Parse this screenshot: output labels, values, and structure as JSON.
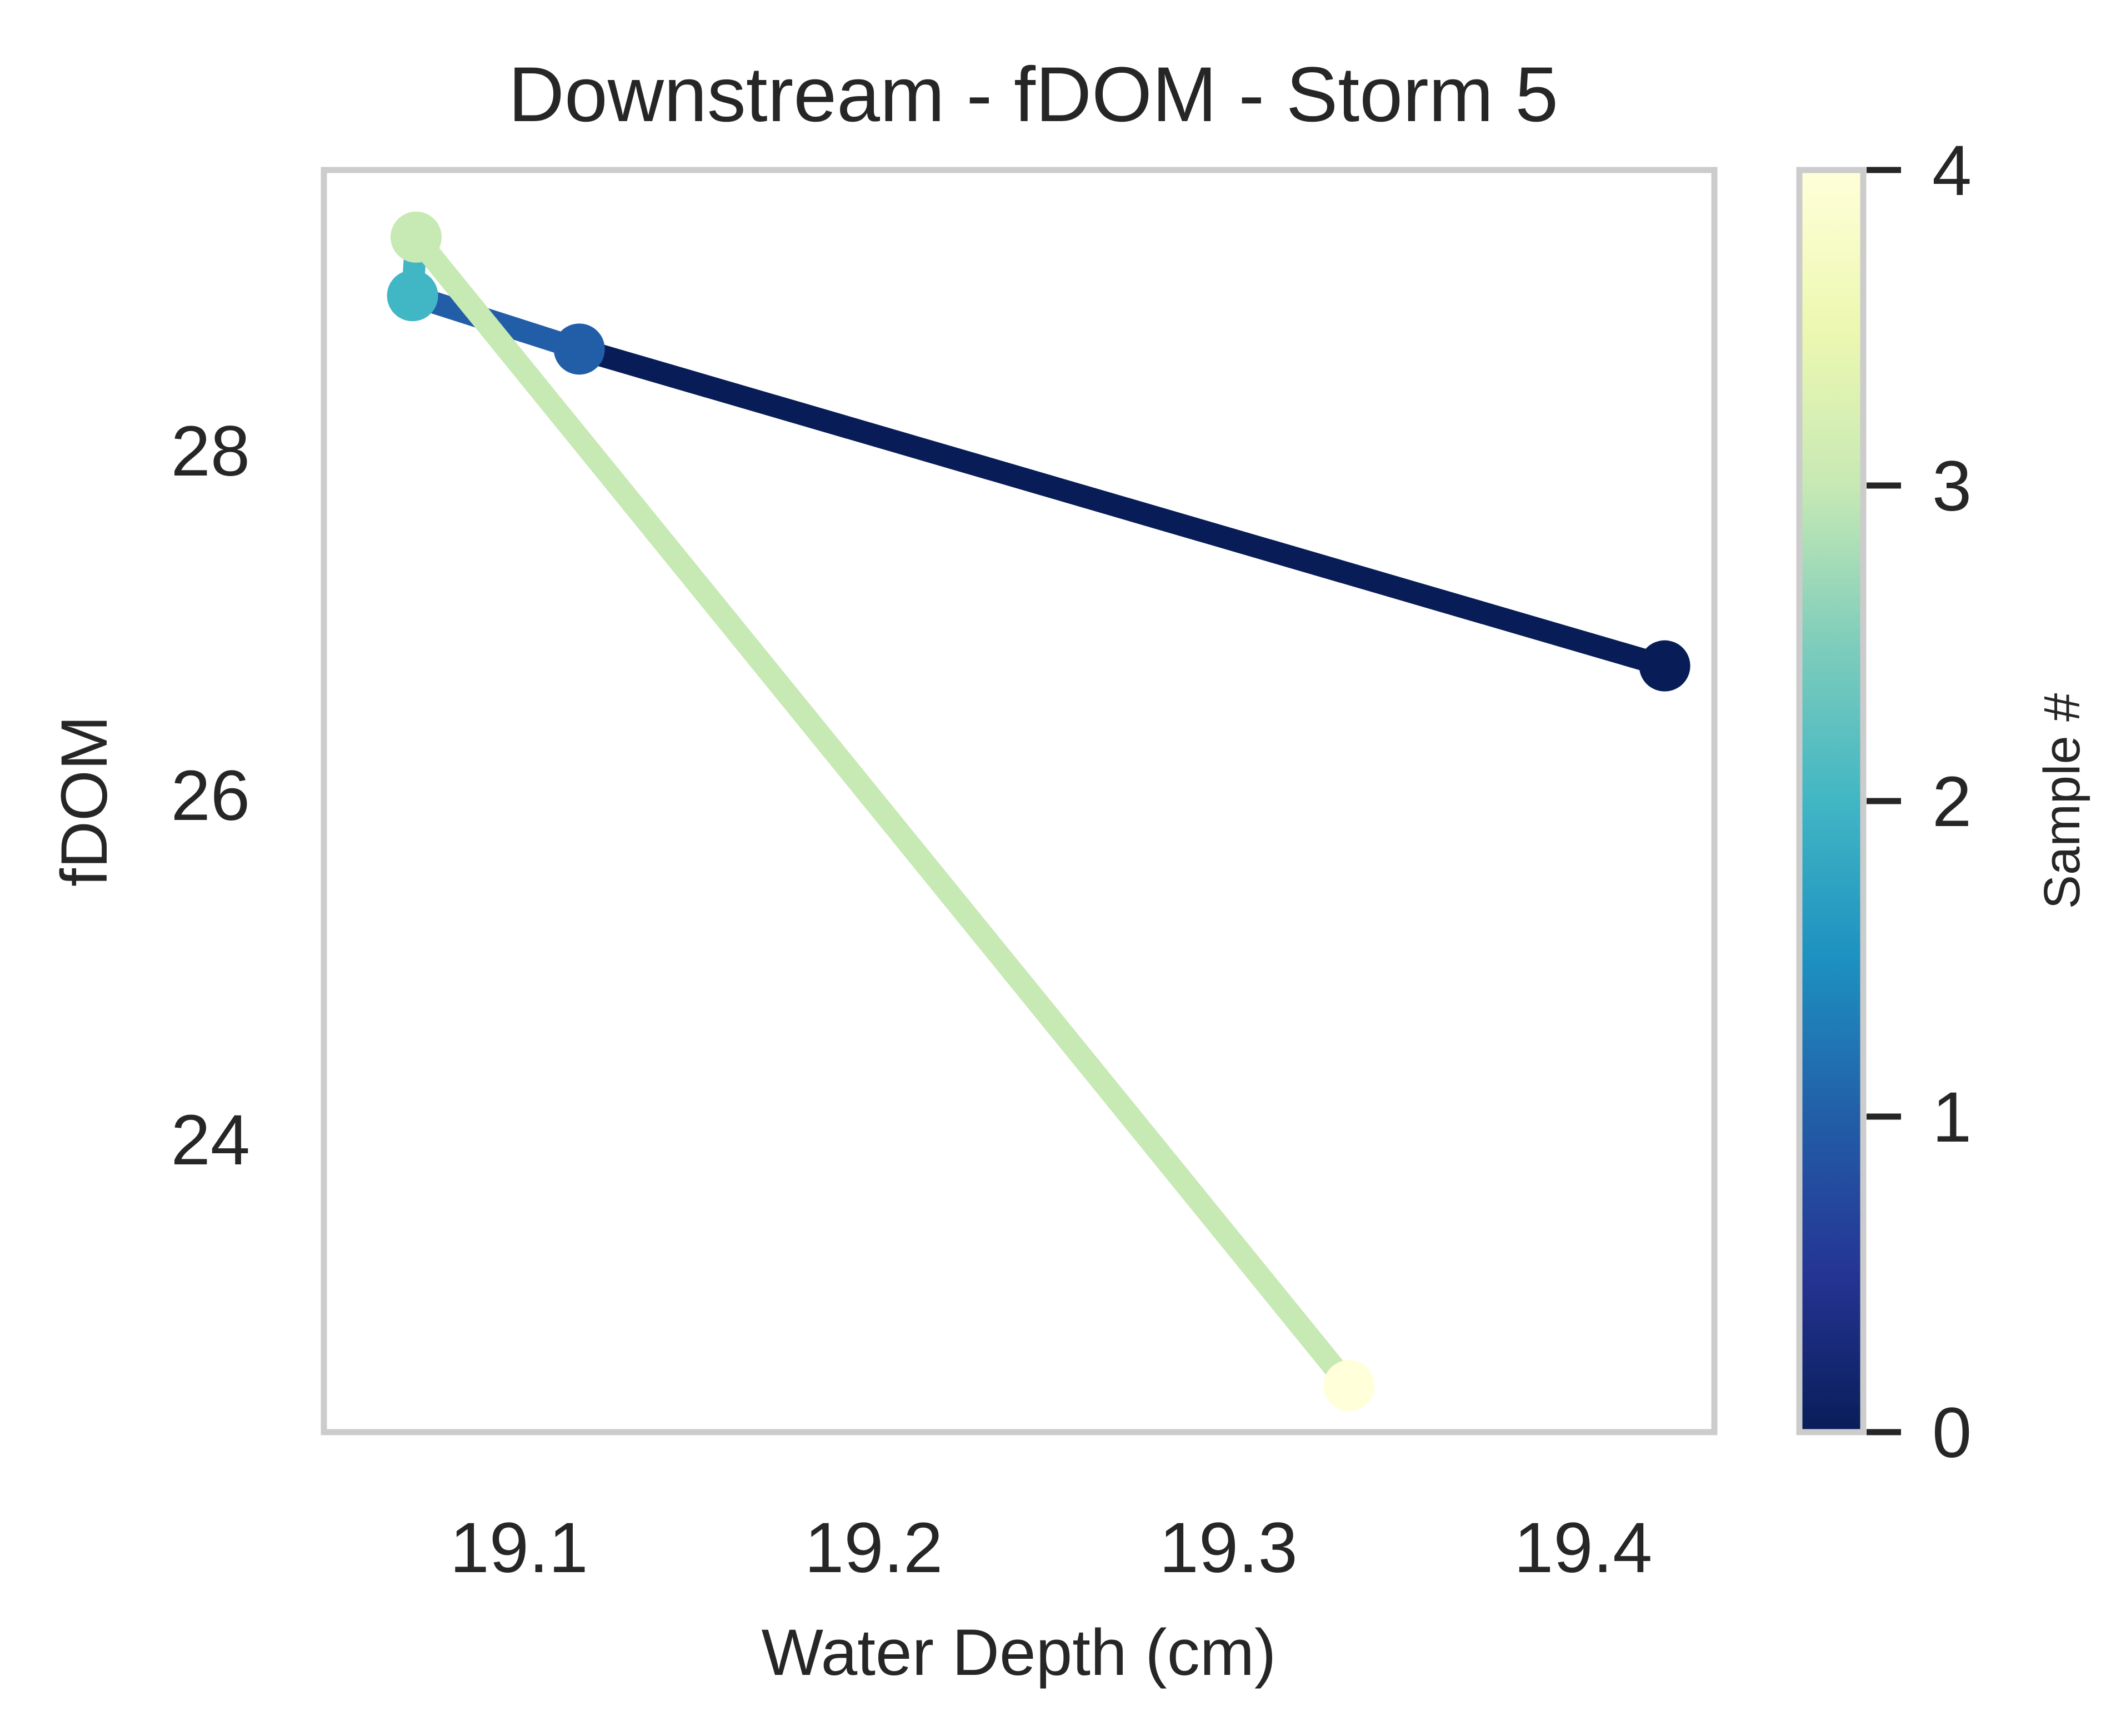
{
  "chart_data": {
    "type": "line",
    "title": "Downstream - fDOM - Storm 5",
    "xlabel": "Water Depth (cm)",
    "ylabel": "fDOM",
    "xlim": [
      19.045,
      19.437
    ],
    "ylim": [
      22.3,
      29.63
    ],
    "xticks": [
      19.1,
      19.2,
      19.3,
      19.4
    ],
    "yticks": [
      24,
      26,
      28
    ],
    "grid": false,
    "points": [
      {
        "x": 19.423,
        "y": 26.75,
        "sample": 0
      },
      {
        "x": 19.117,
        "y": 28.59,
        "sample": 1
      },
      {
        "x": 19.07,
        "y": 28.9,
        "sample": 2
      },
      {
        "x": 19.071,
        "y": 29.24,
        "sample": 3
      },
      {
        "x": 19.334,
        "y": 22.57,
        "sample": 4
      }
    ],
    "colorbar": {
      "label": "Sample #",
      "min": 0,
      "max": 4,
      "ticks": [
        0,
        1,
        2,
        3,
        4
      ],
      "colormap": "YlGnBu_r",
      "colors": [
        "#081d58",
        "#253494",
        "#225ea8",
        "#1d91c0",
        "#41b6c4",
        "#7fcdbb",
        "#c7e9b4",
        "#edf8b1",
        "#ffffd9"
      ]
    }
  }
}
